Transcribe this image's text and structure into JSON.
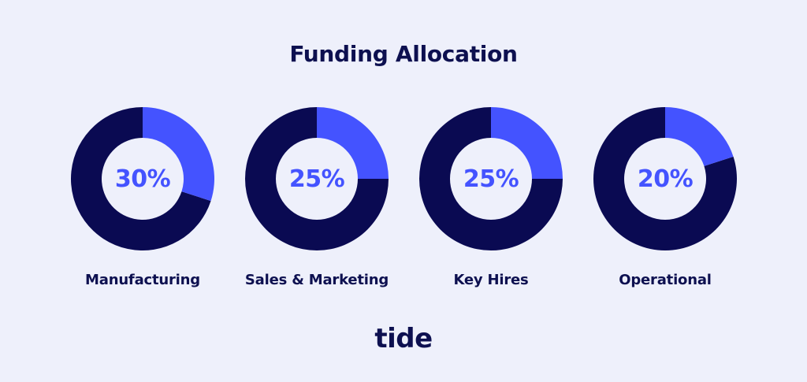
{
  "chart_data": {
    "type": "pie",
    "title": "Funding Allocation",
    "categories": [
      "Manufacturing",
      "Sales & Marketing",
      "Key Hires",
      "Operational"
    ],
    "values": [
      30,
      25,
      25,
      20
    ],
    "value_labels": [
      "30%",
      "25%",
      "25%",
      "20%"
    ],
    "colors": {
      "highlight": "#4453ff",
      "remainder": "#0a0a52",
      "hole": "#eef0fb",
      "label": "#4453ff",
      "text": "#0d1050"
    }
  },
  "brand": {
    "logo_text": "tide"
  }
}
